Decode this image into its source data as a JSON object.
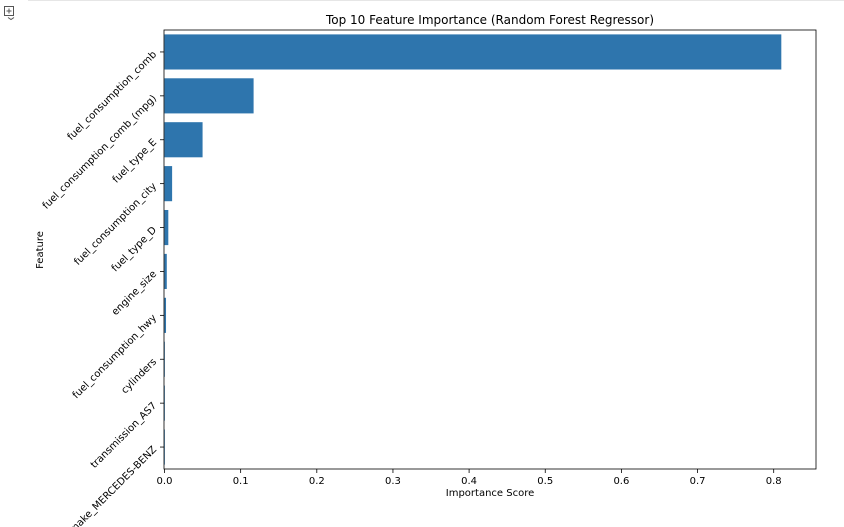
{
  "chart_data": {
    "type": "bar",
    "orientation": "horizontal",
    "title": "Top 10 Feature Importance (Random Forest Regressor)",
    "xlabel": "Importance Score",
    "ylabel": "Feature",
    "xlim": [
      0,
      0.85
    ],
    "xticks": [
      "0.0",
      "0.1",
      "0.2",
      "0.3",
      "0.4",
      "0.5",
      "0.6",
      "0.7",
      "0.8"
    ],
    "grid": false,
    "bar_color": "#2e75ad",
    "categories": [
      "fuel_consumption_comb",
      "fuel_consumption_comb_(mpg)",
      "fuel_type_E",
      "fuel_consumption_city",
      "fuel_type_D",
      "engine_size",
      "fuel_consumption_hwy",
      "cylinders",
      "transmission_AS7",
      "make_MERCEDES-BENZ"
    ],
    "values": [
      0.81,
      0.117,
      0.05,
      0.01,
      0.005,
      0.003,
      0.002,
      0.0004,
      0.0003,
      0.0002
    ]
  }
}
